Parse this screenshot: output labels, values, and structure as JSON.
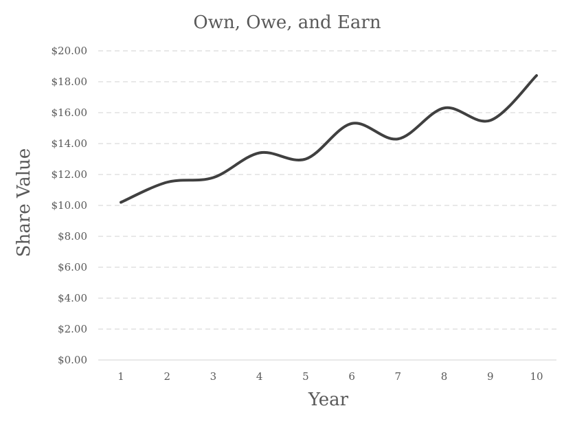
{
  "chart_data": {
    "type": "line",
    "title": "Own, Owe, and Earn",
    "xlabel": "Year",
    "ylabel": "Share Value",
    "categories": [
      "1",
      "2",
      "3",
      "4",
      "5",
      "6",
      "7",
      "8",
      "9",
      "10"
    ],
    "values": [
      10.2,
      11.5,
      11.8,
      13.4,
      13.0,
      15.3,
      14.3,
      16.3,
      15.5,
      18.4
    ],
    "ylim": [
      0,
      20
    ],
    "yticks": [
      "$0.00",
      "$2.00",
      "$4.00",
      "$6.00",
      "$8.00",
      "$10.00",
      "$12.00",
      "$14.00",
      "$16.00",
      "$18.00",
      "$20.00"
    ],
    "grid": "horizontal dashed",
    "smooth": true,
    "line_color": "#404040"
  }
}
